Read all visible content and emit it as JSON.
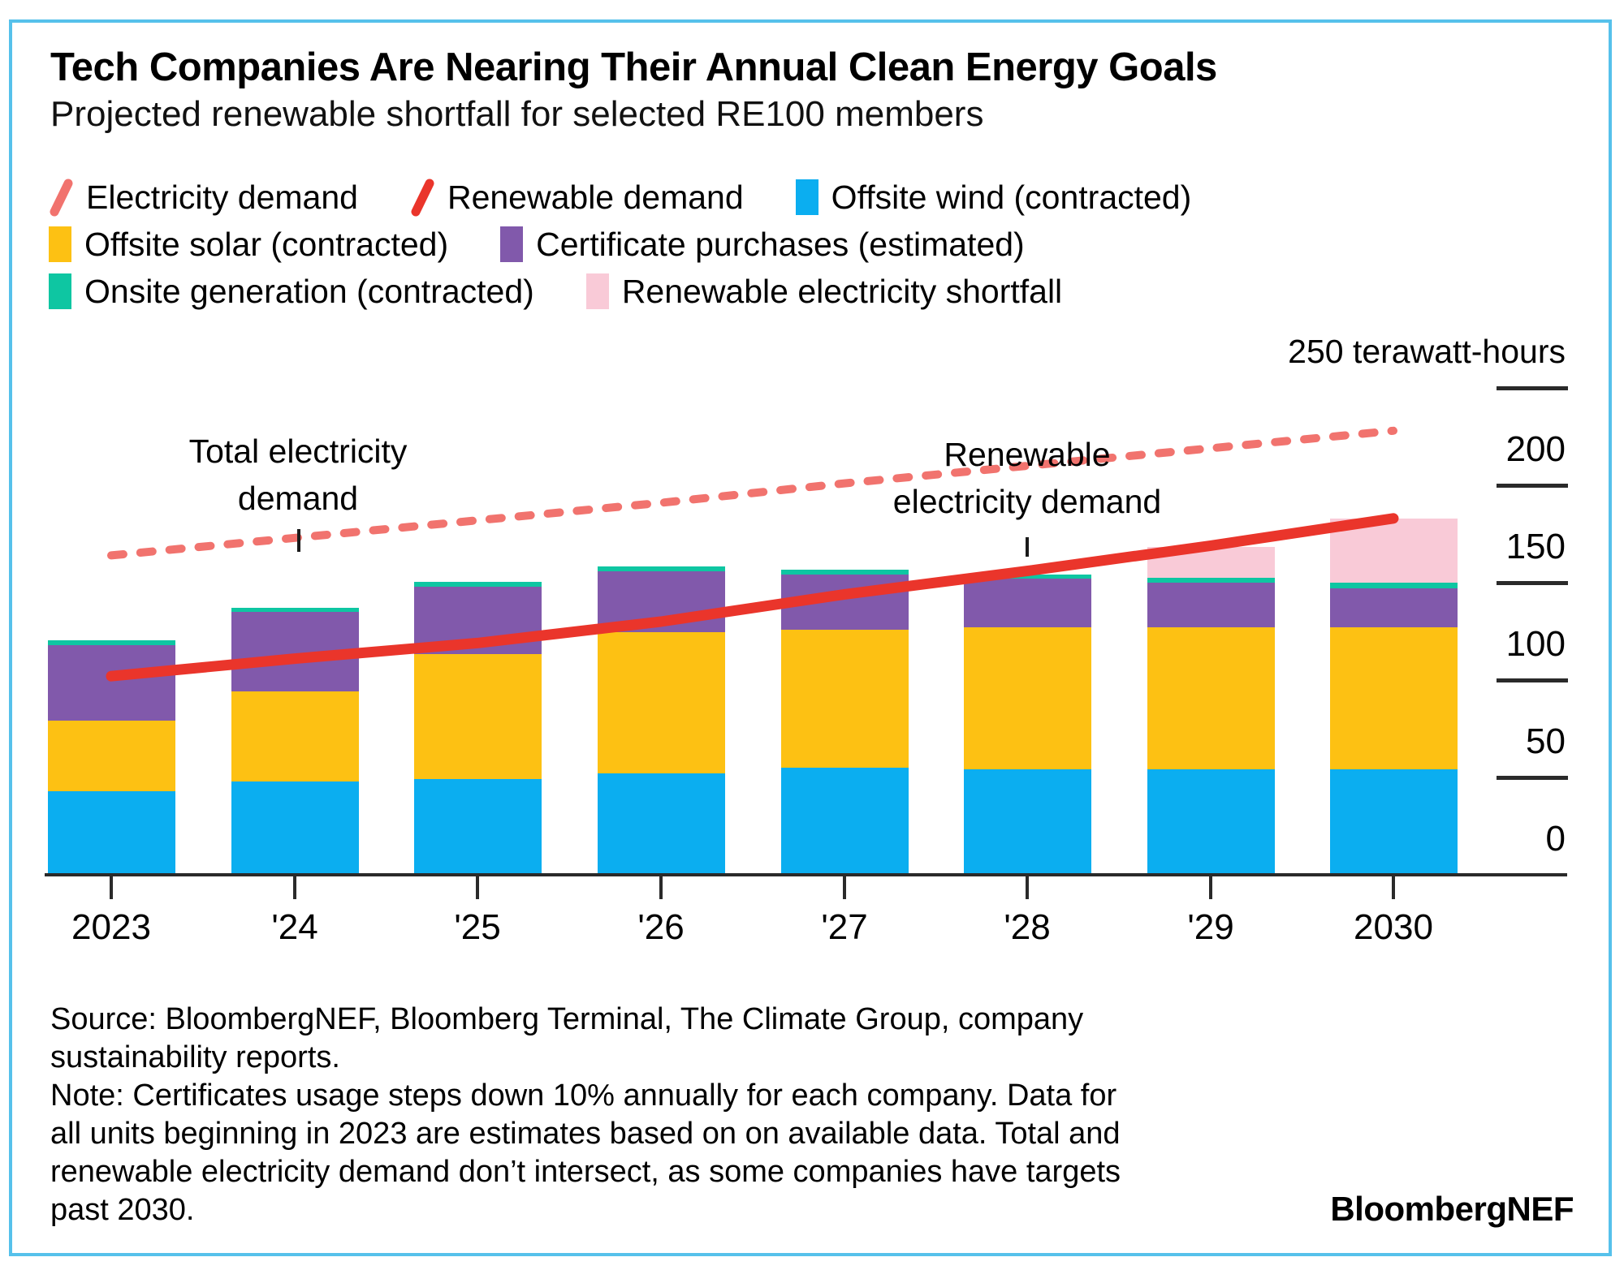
{
  "header": {
    "title": "Tech Companies Are Nearing Their Annual Clean Energy Goals",
    "subtitle": "Projected renewable shortfall for selected RE100 members"
  },
  "colors": {
    "frame": "#56C1EB",
    "axis": "#2a2a2a",
    "wind": "#0BAEF0",
    "solar": "#FDC113",
    "certificates": "#8159AB",
    "onsite": "#0EC6A2",
    "shortfall": "#F9CAD7",
    "electricity_demand": "#F1736E",
    "renewable_demand": "#EA352B"
  },
  "legend": {
    "rows": [
      [
        {
          "swatch": "line",
          "series": "electricity_demand",
          "label": "Electricity demand"
        },
        {
          "swatch": "line",
          "series": "renewable_demand",
          "label": "Renewable demand"
        },
        {
          "swatch": "rect",
          "series": "wind",
          "label": "Offsite wind (contracted)"
        }
      ],
      [
        {
          "swatch": "rect",
          "series": "solar",
          "label": "Offsite solar (contracted)"
        },
        {
          "swatch": "rect",
          "series": "certificates",
          "label": "Certificate purchases (estimated)"
        }
      ],
      [
        {
          "swatch": "rect",
          "series": "onsite",
          "label": "Onsite generation (contracted)"
        },
        {
          "swatch": "rect",
          "series": "shortfall",
          "label": "Renewable electricity shortfall"
        }
      ]
    ]
  },
  "chart_data": {
    "type": "stacked_bar_with_lines",
    "unit_label": "250 terawatt-hours",
    "unit": "terawatt-hours",
    "categories": [
      "2023",
      "'24",
      "'25",
      "'26",
      "'27",
      "'28",
      "'29",
      "2030"
    ],
    "bar_series": [
      {
        "name": "Offsite wind (contracted)",
        "key": "wind",
        "values": [
          43,
          48,
          49,
          52,
          55,
          54,
          54,
          54
        ]
      },
      {
        "name": "Offsite solar (contracted)",
        "key": "solar",
        "values": [
          36,
          46,
          64.5,
          72.5,
          71,
          73,
          73,
          73
        ]
      },
      {
        "name": "Certificate purchases (estimated)",
        "key": "certificates",
        "values": [
          39,
          41,
          34.5,
          31.5,
          28,
          25,
          23,
          20
        ]
      },
      {
        "name": "Onsite generation (contracted)",
        "key": "onsite",
        "values": [
          2.5,
          2,
          2.5,
          2.5,
          2.7,
          2,
          2.4,
          3
        ]
      },
      {
        "name": "Renewable electricity shortfall",
        "key": "shortfall",
        "values": [
          0,
          0,
          0,
          0,
          0,
          0,
          16,
          33
        ]
      }
    ],
    "line_series": [
      {
        "name": "Total electricity demand",
        "key": "electricity_demand",
        "style": "dashed",
        "values": [
          164,
          173,
          182,
          191,
          201,
          210,
          219,
          228
        ]
      },
      {
        "name": "Renewable electricity demand",
        "key": "renewable_demand",
        "style": "solid",
        "values": [
          102,
          111,
          119,
          130,
          144,
          156,
          169,
          183
        ]
      }
    ],
    "ylim": [
      0,
      250
    ],
    "yticks": [
      {
        "value": 250,
        "dash": true,
        "label": ""
      },
      {
        "value": 200,
        "dash": true,
        "label": "200"
      },
      {
        "value": 150,
        "dash": true,
        "label": "150"
      },
      {
        "value": 100,
        "dash": true,
        "label": "100"
      },
      {
        "value": 50,
        "dash": true,
        "label": "50"
      },
      {
        "value": 0,
        "dash": false,
        "label": "0"
      }
    ],
    "grid": false,
    "legend_position": "top"
  },
  "annotations": [
    {
      "lines": [
        "Total electricity",
        "demand"
      ],
      "target": "electricity_demand"
    },
    {
      "lines": [
        "Renewable",
        "electricity demand"
      ],
      "target": "renewable_demand"
    }
  ],
  "footer": {
    "lines": [
      "Source: BloombergNEF, Bloomberg Terminal, The Climate Group, company",
      "sustainability reports.",
      "Note: Certificates usage steps down 10% annually for each company. Data for",
      "all units beginning in 2023 are estimates based on on available data. Total and",
      "renewable electricity demand don’t intersect, as some companies have targets",
      "past 2030."
    ],
    "brand": "BloombergNEF"
  }
}
